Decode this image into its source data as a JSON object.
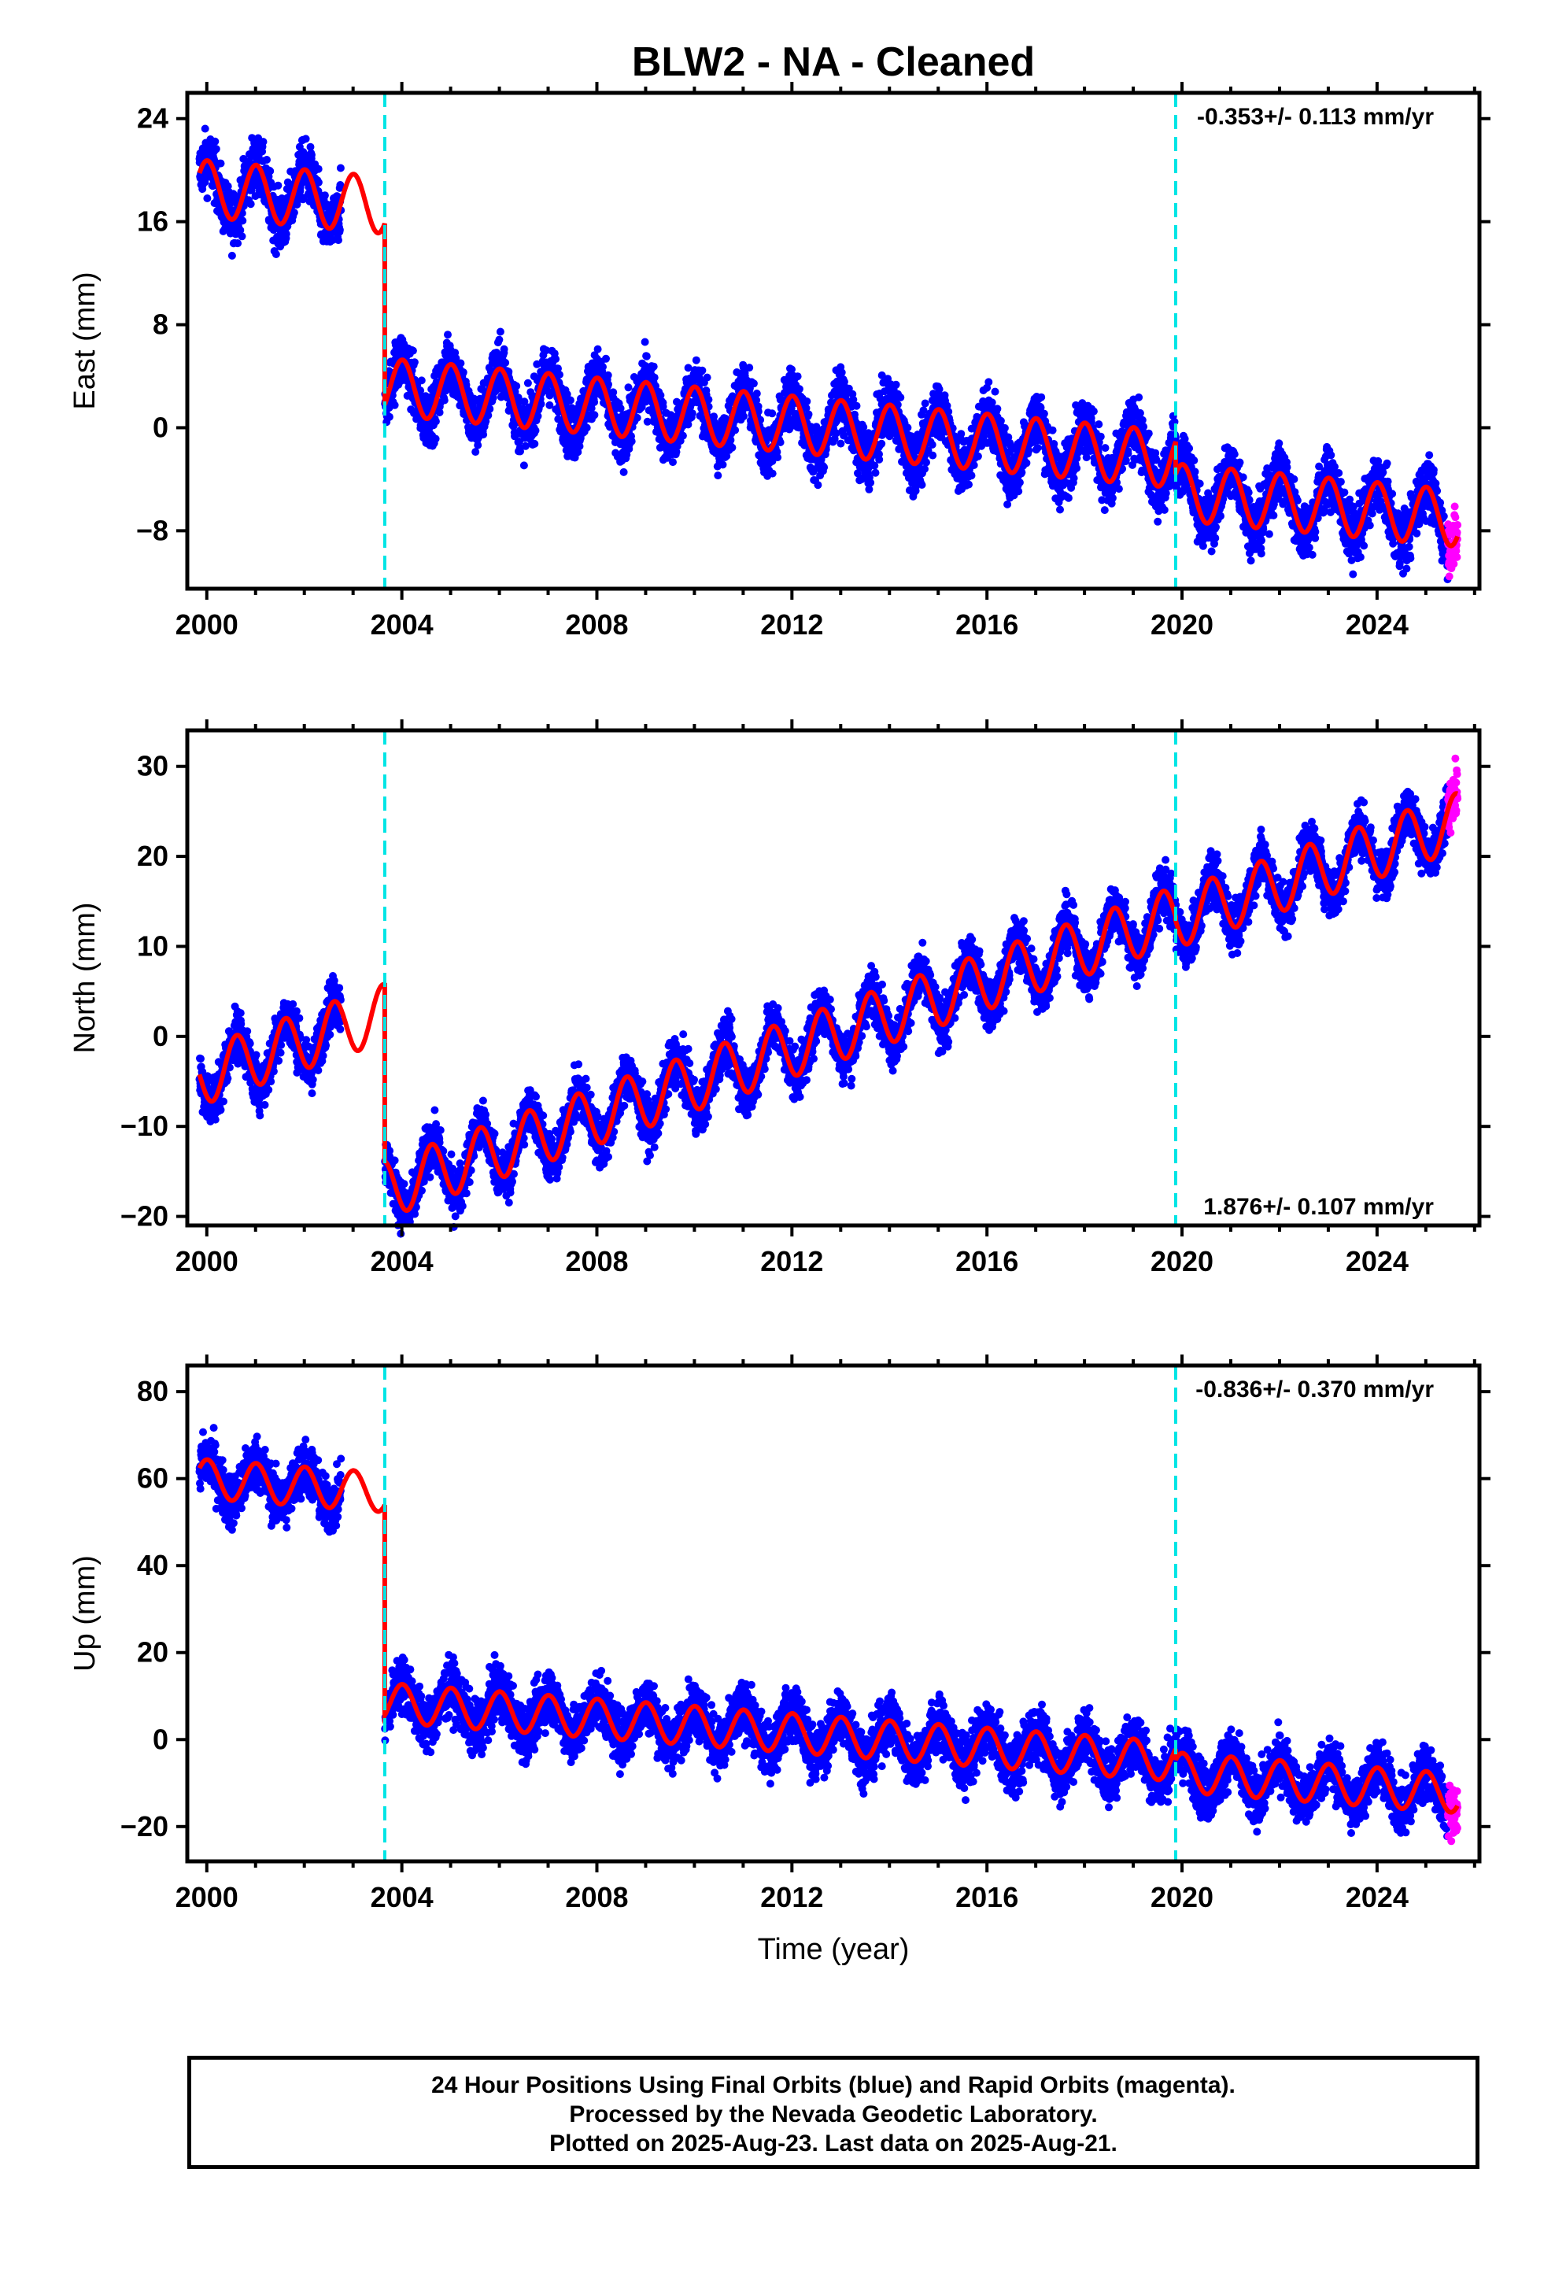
{
  "chart_data": [
    {
      "type": "scatter",
      "title": "BLW2  - NA - Cleaned",
      "ylabel": "East (mm)",
      "xlabel": "",
      "xlim": [
        1999.6,
        2026.1
      ],
      "ylim": [
        -12.5,
        26
      ],
      "yticks": [
        -8,
        0,
        8,
        16,
        24
      ],
      "xticks": [
        2000,
        2004,
        2008,
        2012,
        2016,
        2020,
        2024
      ],
      "rate_label": "-0.353+/- 0.113 mm/yr",
      "rate_label_position": "top-right",
      "steps": [
        2003.65,
        2019.87
      ],
      "model_segments": [
        {
          "t0": 1999.85,
          "t1": 2003.65,
          "a": 18.6,
          "b": -0.35,
          "amp": 2.2,
          "phase": 1.5
        },
        {
          "t0": 2003.65,
          "t1": 2019.87,
          "a": 3.2,
          "b": -0.35,
          "amp": 2.2,
          "phase": 1.5
        },
        {
          "t0": 2019.87,
          "t1": 2025.65,
          "a": -5.0,
          "b": -0.35,
          "amp": 2.2,
          "phase": 1.5
        }
      ],
      "scatter_noise": 1.6,
      "final_orbits_color": "#0000ff",
      "rapid_orbits_color": "#ff00ff",
      "model_color": "#ff0000",
      "step_color": "#00e5e5"
    },
    {
      "type": "scatter",
      "title": "",
      "ylabel": "North (mm)",
      "xlabel": "",
      "xlim": [
        1999.6,
        2026.1
      ],
      "ylim": [
        -21,
        34
      ],
      "yticks": [
        -20,
        -10,
        0,
        10,
        20,
        30
      ],
      "xticks": [
        2000,
        2004,
        2008,
        2012,
        2016,
        2020,
        2024
      ],
      "rate_label": "1.876+/- 0.107 mm/yr",
      "rate_label_position": "bottom-right",
      "steps": [
        2003.65,
        2019.87
      ],
      "model_segments": [
        {
          "t0": 1999.85,
          "t1": 2003.65,
          "a": -4.5,
          "b": 1.876,
          "amp": 3.2,
          "phase": 4.0
        },
        {
          "t0": 2003.65,
          "t1": 2019.87,
          "a": -17.0,
          "b": 1.876,
          "amp": 3.2,
          "phase": 4.0
        },
        {
          "t0": 2019.87,
          "t1": 2025.65,
          "a": 13.0,
          "b": 1.876,
          "amp": 3.2,
          "phase": 4.0
        }
      ],
      "scatter_noise": 2.0,
      "final_orbits_color": "#0000ff",
      "rapid_orbits_color": "#ff00ff",
      "model_color": "#ff0000",
      "step_color": "#00e5e5"
    },
    {
      "type": "scatter",
      "title": "",
      "ylabel": "Up (mm)",
      "xlabel": "Time (year)",
      "xlim": [
        1999.6,
        2026.1
      ],
      "ylim": [
        -28,
        86
      ],
      "yticks": [
        -20,
        0,
        20,
        40,
        60,
        80
      ],
      "xticks": [
        2000,
        2004,
        2008,
        2012,
        2016,
        2020,
        2024
      ],
      "rate_label": "-0.836+/- 0.370 mm/yr",
      "rate_label_position": "top-right",
      "steps": [
        2003.65,
        2019.87
      ],
      "model_segments": [
        {
          "t0": 1999.85,
          "t1": 2003.65,
          "a": 60.0,
          "b": -0.836,
          "amp": 4.5,
          "phase": 1.5
        },
        {
          "t0": 2003.65,
          "t1": 2019.87,
          "a": 8.5,
          "b": -0.836,
          "amp": 4.5,
          "phase": 1.5
        },
        {
          "t0": 2019.87,
          "t1": 2025.65,
          "a": -7.5,
          "b": -0.836,
          "amp": 4.5,
          "phase": 1.5
        }
      ],
      "scatter_noise": 4.5,
      "final_orbits_color": "#0000ff",
      "rapid_orbits_color": "#ff00ff",
      "model_color": "#ff0000",
      "step_color": "#00e5e5"
    }
  ],
  "footer": {
    "line1": "24 Hour Positions Using Final Orbits (blue) and Rapid Orbits (magenta).",
    "line2": "Processed by the Nevada Geodetic Laboratory.",
    "line3": "Plotted on 2025-Aug-23. Last data on 2025-Aug-21."
  }
}
